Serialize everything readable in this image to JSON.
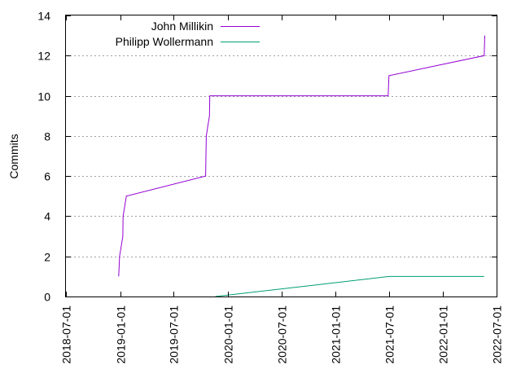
{
  "chart_data": {
    "type": "line",
    "title": "",
    "xlabel": "",
    "ylabel": "Commits",
    "x_ticks": [
      "2018-07-01",
      "2019-01-01",
      "2019-07-01",
      "2020-01-01",
      "2020-07-01",
      "2021-01-01",
      "2021-07-01",
      "2022-01-01",
      "2022-07-01"
    ],
    "y_ticks": [
      0,
      2,
      4,
      6,
      8,
      10,
      12,
      14
    ],
    "xlim": [
      "2018-07-01",
      "2022-07-01"
    ],
    "ylim": [
      0,
      14
    ],
    "grid": "horizontal dotted",
    "legend_position": "top-left",
    "series": [
      {
        "name": "John Millikin",
        "color": "#9400d3",
        "points": [
          [
            "2018-12-27",
            1
          ],
          [
            "2018-12-30",
            2
          ],
          [
            "2019-01-10",
            3
          ],
          [
            "2019-01-11",
            4
          ],
          [
            "2019-01-22",
            5
          ],
          [
            "2019-10-18",
            6
          ],
          [
            "2019-10-20",
            8
          ],
          [
            "2019-10-31",
            9
          ],
          [
            "2019-11-01",
            10
          ],
          [
            "2021-06-28",
            10
          ],
          [
            "2021-07-01",
            11
          ],
          [
            "2022-05-20",
            12
          ],
          [
            "2022-05-22",
            13
          ]
        ]
      },
      {
        "name": "Philipp Wollermann",
        "color": "#009e73",
        "points": [
          [
            "2019-11-20",
            0
          ],
          [
            "2021-07-01",
            1
          ],
          [
            "2022-05-20",
            1
          ]
        ]
      }
    ]
  }
}
